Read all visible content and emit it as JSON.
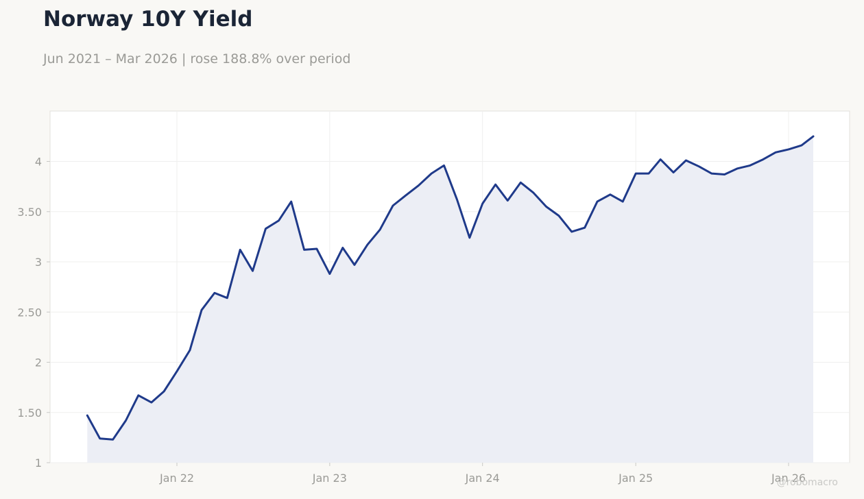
{
  "header": {
    "title": "Norway 10Y Yield",
    "subtitle": "Jun 2021 – Mar 2026 | rose 188.8% over period"
  },
  "watermark": "@robomacro",
  "colors": {
    "line": "#1f3a8a",
    "fill": "#eceef5",
    "grid": "#efefee",
    "background": "#f9f8f5",
    "plot_background": "#ffffff"
  },
  "chart_data": {
    "type": "area",
    "title": "Norway 10Y Yield",
    "xlabel": "",
    "ylabel": "",
    "grid": true,
    "ylim": [
      1,
      4.5
    ],
    "xlim": [
      "2021-03-25",
      "2026-04-15"
    ],
    "x_ticks": [
      {
        "date": "2022-01-01",
        "label": "Jan 22"
      },
      {
        "date": "2023-01-01",
        "label": "Jan 23"
      },
      {
        "date": "2024-01-01",
        "label": "Jan 24"
      },
      {
        "date": "2025-01-01",
        "label": "Jan 25"
      },
      {
        "date": "2026-01-01",
        "label": "Jan 26"
      }
    ],
    "y_ticks": [
      {
        "value": 1,
        "label": "1"
      },
      {
        "value": 1.5,
        "label": "1.50"
      },
      {
        "value": 2,
        "label": "2"
      },
      {
        "value": 2.5,
        "label": "2.50"
      },
      {
        "value": 3,
        "label": "3"
      },
      {
        "value": 3.5,
        "label": "3.50"
      },
      {
        "value": 4,
        "label": "4"
      }
    ],
    "x": [
      "2021-06-01",
      "2021-07-01",
      "2021-08-01",
      "2021-09-01",
      "2021-10-01",
      "2021-11-01",
      "2021-12-01",
      "2022-01-01",
      "2022-02-01",
      "2022-03-01",
      "2022-04-01",
      "2022-05-01",
      "2022-06-01",
      "2022-07-01",
      "2022-08-01",
      "2022-09-01",
      "2022-10-01",
      "2022-11-01",
      "2022-12-01",
      "2023-01-01",
      "2023-02-01",
      "2023-03-01",
      "2023-04-01",
      "2023-05-01",
      "2023-06-01",
      "2023-07-01",
      "2023-08-01",
      "2023-09-01",
      "2023-10-01",
      "2023-11-01",
      "2023-12-01",
      "2024-01-01",
      "2024-02-01",
      "2024-03-01",
      "2024-04-01",
      "2024-05-01",
      "2024-06-01",
      "2024-07-01",
      "2024-08-01",
      "2024-09-01",
      "2024-10-01",
      "2024-11-01",
      "2024-12-01",
      "2025-01-01",
      "2025-02-01",
      "2025-03-01",
      "2025-04-01",
      "2025-05-01",
      "2025-06-01",
      "2025-07-01",
      "2025-08-01",
      "2025-09-01",
      "2025-10-01",
      "2025-11-01",
      "2025-12-01",
      "2026-01-01",
      "2026-02-01",
      "2026-03-01"
    ],
    "series": [
      {
        "values": [
          1.47,
          1.24,
          1.23,
          1.42,
          1.67,
          1.6,
          1.71,
          1.91,
          2.12,
          2.52,
          2.69,
          2.64,
          3.12,
          2.91,
          3.33,
          3.41,
          3.6,
          3.12,
          3.13,
          2.88,
          3.14,
          2.97,
          3.17,
          3.32,
          3.56,
          3.66,
          3.76,
          3.88,
          3.96,
          3.62,
          3.24,
          3.58,
          3.77,
          3.61,
          3.79,
          3.69,
          3.55,
          3.46,
          3.3,
          3.34,
          3.6,
          3.67,
          3.6,
          3.88,
          3.88,
          4.02,
          3.89,
          4.01,
          3.95,
          3.88,
          3.87,
          3.93,
          3.96,
          4.02,
          4.09,
          4.12,
          4.16,
          4.25
        ]
      }
    ]
  }
}
